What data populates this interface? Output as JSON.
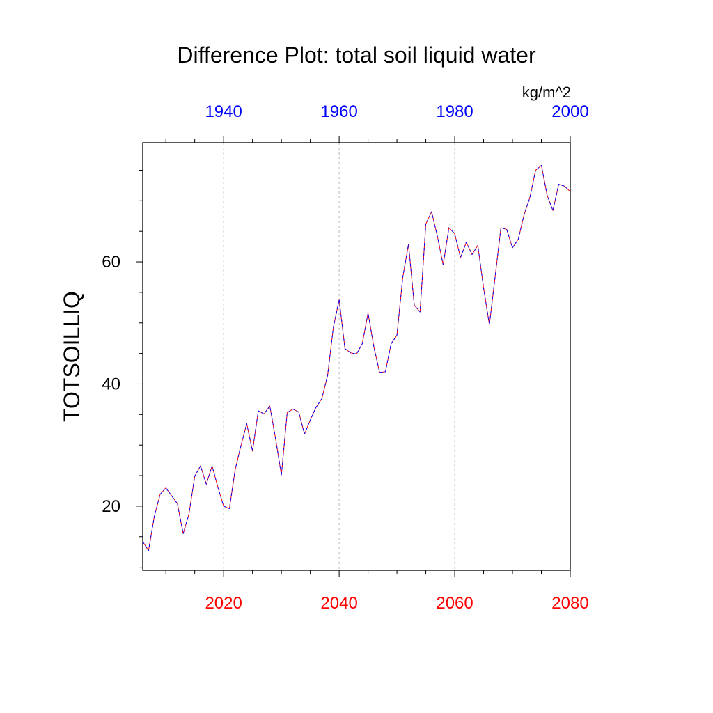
{
  "chart_data": {
    "type": "line",
    "title": "Difference Plot: total soil liquid water",
    "units": "kg/m^2",
    "ylabel": "TOTSOILLIQ",
    "xlim_bottom": [
      2006,
      2080
    ],
    "xlim_top": [
      1926,
      2000
    ],
    "ylim": [
      9.5,
      79.5
    ],
    "bottom_axis": {
      "ticks": [
        2020,
        2040,
        2060,
        2080
      ],
      "color": "#ff0000"
    },
    "top_axis": {
      "ticks": [
        1940,
        1960,
        1980,
        2000
      ],
      "color": "#0000ff"
    },
    "y_ticks": [
      20,
      40,
      60
    ],
    "gridlines_x": [
      2020,
      2040,
      2060
    ],
    "series": [
      {
        "name": "series-red",
        "color": "#ff0000",
        "x": [
          2006,
          2007,
          2008,
          2009,
          2010,
          2011,
          2012,
          2013,
          2014,
          2015,
          2016,
          2017,
          2018,
          2019,
          2020,
          2021,
          2022,
          2023,
          2024,
          2025,
          2026,
          2027,
          2028,
          2029,
          2030,
          2031,
          2032,
          2033,
          2034,
          2035,
          2036,
          2037,
          2038,
          2039,
          2040,
          2041,
          2042,
          2043,
          2044,
          2045,
          2046,
          2047,
          2048,
          2049,
          2050,
          2051,
          2052,
          2053,
          2054,
          2055,
          2056,
          2057,
          2058,
          2059,
          2060,
          2061,
          2062,
          2063,
          2064,
          2065,
          2066,
          2067,
          2068,
          2069,
          2070,
          2071,
          2072,
          2073,
          2074,
          2075,
          2076,
          2077,
          2078,
          2079,
          2080
        ],
        "values": [
          14.2,
          12.7,
          18.3,
          21.9,
          23.0,
          21.7,
          20.4,
          15.5,
          18.7,
          24.9,
          26.6,
          23.6,
          26.6,
          23.1,
          20.0,
          19.6,
          26.0,
          29.9,
          33.5,
          29.0,
          35.6,
          35.1,
          36.4,
          31.0,
          25.1,
          35.3,
          35.9,
          35.4,
          31.8,
          34.1,
          36.2,
          37.6,
          41.4,
          49.3,
          53.8,
          45.8,
          45.1,
          44.9,
          46.6,
          51.6,
          46.1,
          41.9,
          42.0,
          46.6,
          48.0,
          57.4,
          62.9,
          52.9,
          51.8,
          66.2,
          68.2,
          64.2,
          59.5,
          65.6,
          64.6,
          60.7,
          63.2,
          61.2,
          62.7,
          55.7,
          49.7,
          57.6,
          65.6,
          65.3,
          62.3,
          63.7,
          67.7,
          70.5,
          75.0,
          75.8,
          70.9,
          68.4,
          72.7,
          72.4,
          71.5
        ]
      },
      {
        "name": "series-blue",
        "color": "#0000ff",
        "x": [
          2006,
          2007,
          2008,
          2009,
          2010,
          2011,
          2012,
          2013,
          2014,
          2015,
          2016,
          2017,
          2018,
          2019,
          2020,
          2021,
          2022,
          2023,
          2024,
          2025,
          2026,
          2027,
          2028,
          2029,
          2030,
          2031,
          2032,
          2033,
          2034,
          2035,
          2036,
          2037,
          2038,
          2039,
          2040,
          2041,
          2042,
          2043,
          2044,
          2045,
          2046,
          2047,
          2048,
          2049,
          2050,
          2051,
          2052,
          2053,
          2054,
          2055,
          2056,
          2057,
          2058,
          2059,
          2060,
          2061,
          2062,
          2063,
          2064,
          2065,
          2066,
          2067,
          2068,
          2069,
          2070,
          2071,
          2072,
          2073,
          2074,
          2075,
          2076,
          2077,
          2078,
          2079,
          2080
        ],
        "values": [
          14.2,
          12.7,
          18.3,
          21.9,
          23.0,
          21.7,
          20.4,
          15.5,
          18.7,
          24.9,
          26.6,
          23.6,
          26.6,
          23.1,
          20.0,
          19.6,
          26.0,
          29.9,
          33.5,
          29.0,
          35.6,
          35.1,
          36.4,
          31.0,
          25.1,
          35.3,
          35.9,
          35.4,
          31.8,
          34.1,
          36.2,
          37.6,
          41.4,
          49.3,
          53.8,
          45.8,
          45.1,
          44.9,
          46.6,
          51.6,
          46.1,
          41.9,
          42.0,
          46.6,
          48.0,
          57.4,
          62.9,
          52.9,
          51.8,
          66.2,
          68.2,
          64.2,
          59.5,
          65.6,
          64.6,
          60.7,
          63.2,
          61.2,
          62.7,
          55.7,
          49.7,
          57.6,
          65.6,
          65.3,
          62.3,
          63.7,
          67.7,
          70.5,
          75.0,
          75.8,
          70.9,
          68.4,
          72.7,
          72.4,
          71.5
        ]
      }
    ]
  }
}
